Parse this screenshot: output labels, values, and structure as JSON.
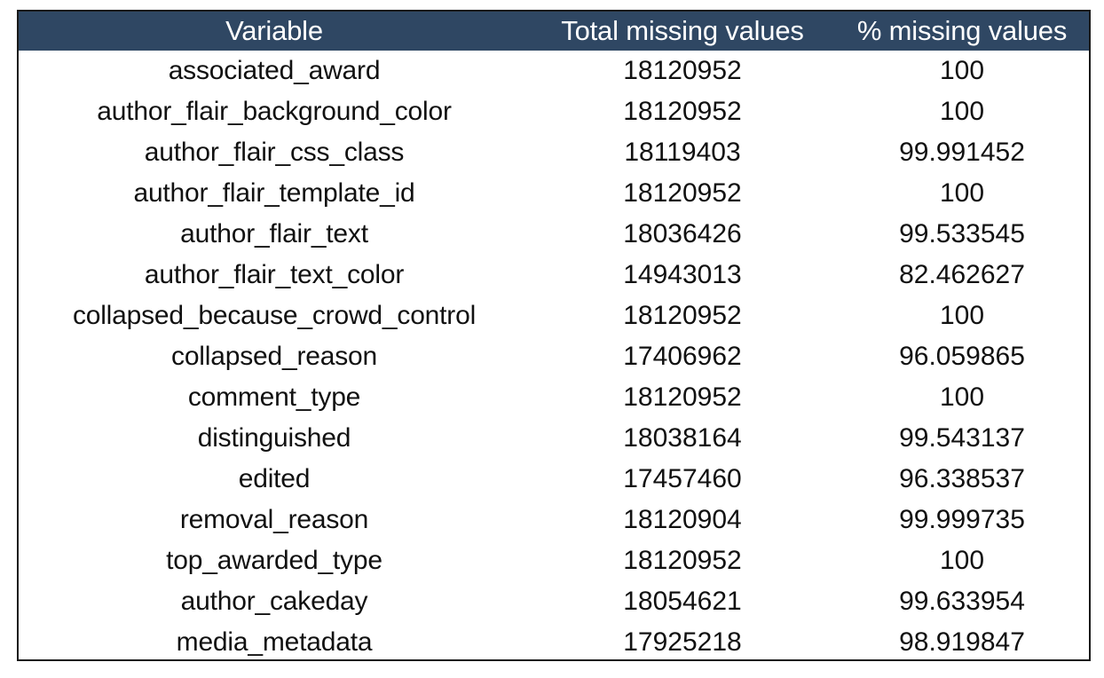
{
  "table": {
    "headers": [
      "Variable",
      "Total missing values",
      "% missing values"
    ],
    "rows": [
      [
        "associated_award",
        "18120952",
        "100"
      ],
      [
        "author_flair_background_color",
        "18120952",
        "100"
      ],
      [
        "author_flair_css_class",
        "18119403",
        "99.991452"
      ],
      [
        "author_flair_template_id",
        "18120952",
        "100"
      ],
      [
        "author_flair_text",
        "18036426",
        "99.533545"
      ],
      [
        "author_flair_text_color",
        "14943013",
        "82.462627"
      ],
      [
        "collapsed_because_crowd_control",
        "18120952",
        "100"
      ],
      [
        "collapsed_reason",
        "17406962",
        "96.059865"
      ],
      [
        "comment_type",
        "18120952",
        "100"
      ],
      [
        "distinguished",
        "18038164",
        "99.543137"
      ],
      [
        "edited",
        "17457460",
        "96.338537"
      ],
      [
        "removal_reason",
        "18120904",
        "99.999735"
      ],
      [
        "top_awarded_type",
        "18120952",
        "100"
      ],
      [
        "author_cakeday",
        "18054621",
        "99.633954"
      ],
      [
        "media_metadata",
        "17925218",
        "98.919847"
      ]
    ]
  },
  "colors": {
    "header_background": "#2f4763",
    "header_text": "#ffffff",
    "border": "#1a1a1a"
  }
}
